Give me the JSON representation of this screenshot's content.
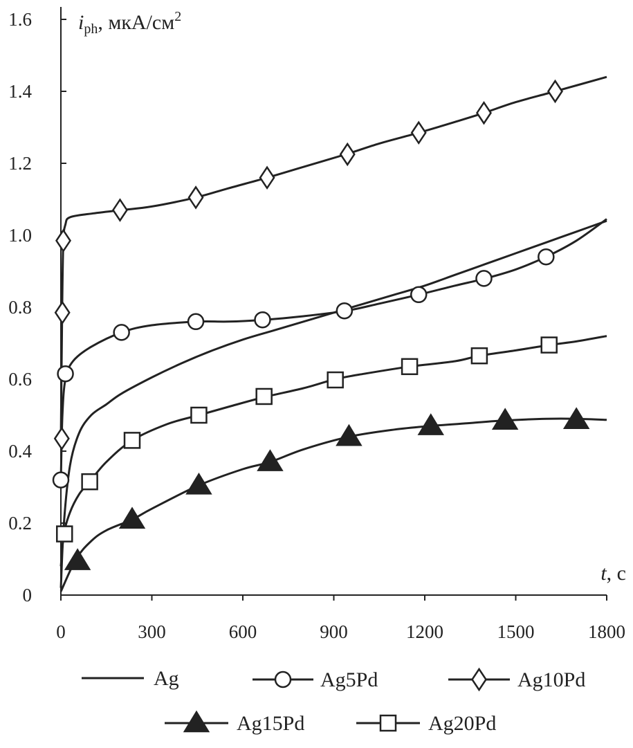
{
  "chart_data": {
    "type": "line",
    "title": "",
    "ylabel_main": "i",
    "ylabel_sub": "ph",
    "ylabel_units": ", мкА/см",
    "ylabel_sup": "2",
    "xlabel_main": "t",
    "xlabel_units": ", с",
    "xlim": [
      0,
      1800
    ],
    "ylim": [
      0,
      1.6
    ],
    "x_ticks": [
      {
        "value": 0,
        "label": "0"
      },
      {
        "value": 300,
        "label": "300"
      },
      {
        "value": 600,
        "label": "600"
      },
      {
        "value": 900,
        "label": "900"
      },
      {
        "value": 1200,
        "label": "1200"
      },
      {
        "value": 1500,
        "label": "1500"
      },
      {
        "value": 1800,
        "label": "1800"
      }
    ],
    "y_ticks": [
      {
        "value": 0,
        "label": "0"
      },
      {
        "value": 0.2,
        "label": "0.2"
      },
      {
        "value": 0.4,
        "label": "0.4"
      },
      {
        "value": 0.6,
        "label": "0.6"
      },
      {
        "value": 0.8,
        "label": "0.8"
      },
      {
        "value": 1.0,
        "label": "1.0"
      },
      {
        "value": 1.2,
        "label": "1.2"
      },
      {
        "value": 1.4,
        "label": "1.4"
      },
      {
        "value": 1.6,
        "label": "1.6"
      }
    ],
    "grid": false,
    "legend_position": "bottom",
    "series": [
      {
        "name": "Ag",
        "marker": "none",
        "curve": [
          [
            0,
            0.02
          ],
          [
            10,
            0.2
          ],
          [
            30,
            0.36
          ],
          [
            60,
            0.45
          ],
          [
            100,
            0.5
          ],
          [
            150,
            0.53
          ],
          [
            200,
            0.56
          ],
          [
            300,
            0.605
          ],
          [
            400,
            0.645
          ],
          [
            500,
            0.68
          ],
          [
            600,
            0.71
          ],
          [
            700,
            0.735
          ],
          [
            800,
            0.76
          ],
          [
            900,
            0.785
          ],
          [
            1000,
            0.81
          ],
          [
            1100,
            0.835
          ],
          [
            1200,
            0.86
          ],
          [
            1300,
            0.89
          ],
          [
            1400,
            0.92
          ],
          [
            1500,
            0.95
          ],
          [
            1600,
            0.98
          ],
          [
            1700,
            1.01
          ],
          [
            1800,
            1.04
          ]
        ],
        "points": []
      },
      {
        "name": "Ag5Pd",
        "marker": "circle",
        "curve": [
          [
            0,
            0.32
          ],
          [
            5,
            0.5
          ],
          [
            15,
            0.6
          ],
          [
            40,
            0.65
          ],
          [
            100,
            0.69
          ],
          [
            200,
            0.73
          ],
          [
            300,
            0.75
          ],
          [
            450,
            0.76
          ],
          [
            550,
            0.76
          ],
          [
            670,
            0.765
          ],
          [
            800,
            0.775
          ],
          [
            940,
            0.79
          ],
          [
            1050,
            0.81
          ],
          [
            1180,
            0.835
          ],
          [
            1300,
            0.86
          ],
          [
            1400,
            0.88
          ],
          [
            1500,
            0.905
          ],
          [
            1600,
            0.94
          ],
          [
            1700,
            0.985
          ],
          [
            1800,
            1.045
          ]
        ],
        "points": [
          [
            0,
            0.32
          ],
          [
            15,
            0.615
          ],
          [
            200,
            0.73
          ],
          [
            445,
            0.76
          ],
          [
            665,
            0.765
          ],
          [
            935,
            0.79
          ],
          [
            1180,
            0.835
          ],
          [
            1395,
            0.88
          ],
          [
            1600,
            0.94
          ]
        ]
      },
      {
        "name": "Ag10Pd",
        "marker": "diamond",
        "curve": [
          [
            0,
            0.43
          ],
          [
            4,
            0.78
          ],
          [
            8,
            0.98
          ],
          [
            15,
            1.03
          ],
          [
            30,
            1.05
          ],
          [
            100,
            1.06
          ],
          [
            200,
            1.07
          ],
          [
            300,
            1.08
          ],
          [
            445,
            1.105
          ],
          [
            550,
            1.13
          ],
          [
            680,
            1.16
          ],
          [
            800,
            1.19
          ],
          [
            940,
            1.225
          ],
          [
            1050,
            1.255
          ],
          [
            1180,
            1.285
          ],
          [
            1300,
            1.315
          ],
          [
            1395,
            1.34
          ],
          [
            1500,
            1.37
          ],
          [
            1630,
            1.4
          ],
          [
            1800,
            1.44
          ]
        ],
        "points": [
          [
            3,
            0.435
          ],
          [
            5,
            0.785
          ],
          [
            8,
            0.985
          ],
          [
            195,
            1.07
          ],
          [
            445,
            1.105
          ],
          [
            680,
            1.16
          ],
          [
            945,
            1.225
          ],
          [
            1180,
            1.285
          ],
          [
            1395,
            1.34
          ],
          [
            1630,
            1.4
          ]
        ]
      },
      {
        "name": "Ag15Pd",
        "marker": "triangle",
        "curve": [
          [
            0,
            0.01
          ],
          [
            50,
            0.1
          ],
          [
            100,
            0.15
          ],
          [
            150,
            0.18
          ],
          [
            235,
            0.21
          ],
          [
            300,
            0.24
          ],
          [
            455,
            0.305
          ],
          [
            600,
            0.35
          ],
          [
            690,
            0.37
          ],
          [
            800,
            0.405
          ],
          [
            950,
            0.44
          ],
          [
            1100,
            0.46
          ],
          [
            1220,
            0.47
          ],
          [
            1350,
            0.478
          ],
          [
            1460,
            0.485
          ],
          [
            1600,
            0.49
          ],
          [
            1700,
            0.49
          ],
          [
            1800,
            0.487
          ]
        ],
        "points": [
          [
            55,
            0.095
          ],
          [
            235,
            0.21
          ],
          [
            455,
            0.305
          ],
          [
            690,
            0.37
          ],
          [
            950,
            0.44
          ],
          [
            1220,
            0.47
          ],
          [
            1465,
            0.485
          ],
          [
            1700,
            0.487
          ]
        ]
      },
      {
        "name": "Ag20Pd",
        "marker": "square",
        "curve": [
          [
            0,
            0.08
          ],
          [
            10,
            0.17
          ],
          [
            30,
            0.23
          ],
          [
            60,
            0.28
          ],
          [
            95,
            0.315
          ],
          [
            150,
            0.37
          ],
          [
            235,
            0.43
          ],
          [
            350,
            0.475
          ],
          [
            455,
            0.5
          ],
          [
            560,
            0.525
          ],
          [
            670,
            0.55
          ],
          [
            800,
            0.575
          ],
          [
            905,
            0.6
          ],
          [
            1000,
            0.615
          ],
          [
            1150,
            0.635
          ],
          [
            1300,
            0.65
          ],
          [
            1380,
            0.665
          ],
          [
            1500,
            0.68
          ],
          [
            1610,
            0.695
          ],
          [
            1700,
            0.705
          ],
          [
            1800,
            0.72
          ]
        ],
        "points": [
          [
            12,
            0.17
          ],
          [
            95,
            0.315
          ],
          [
            235,
            0.43
          ],
          [
            455,
            0.5
          ],
          [
            670,
            0.552
          ],
          [
            905,
            0.598
          ],
          [
            1150,
            0.635
          ],
          [
            1380,
            0.665
          ],
          [
            1610,
            0.695
          ]
        ]
      }
    ]
  }
}
